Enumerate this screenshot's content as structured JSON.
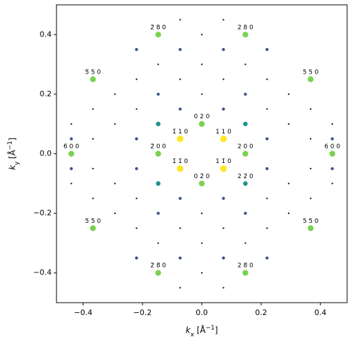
{
  "chart_data": {
    "type": "scatter",
    "xlabel": [
      "k",
      "x",
      " [Å",
      "−1",
      "]"
    ],
    "ylabel": [
      "k",
      "y",
      " [Å",
      "−1",
      "]"
    ],
    "xlim": [
      -0.49,
      0.49
    ],
    "ylim": [
      -0.5,
      0.5
    ],
    "xticks": [
      {
        "value": -0.4,
        "label": "−0.4"
      },
      {
        "value": -0.2,
        "label": "−0.2"
      },
      {
        "value": 0,
        "label": "0.0"
      },
      {
        "value": 0.2,
        "label": "0.2"
      },
      {
        "value": 0.4,
        "label": "0.4"
      }
    ],
    "yticks": [
      {
        "value": -0.4,
        "label": "−0.4"
      },
      {
        "value": -0.2,
        "label": "−0.2"
      },
      {
        "value": 0,
        "label": "0.0"
      },
      {
        "value": 0.2,
        "label": "0.2"
      },
      {
        "value": 0.4,
        "label": "0.4"
      }
    ],
    "series": [
      {
        "color": "#440154",
        "size": 1.2,
        "x": [
          0.293,
          -0.293,
          0.293,
          -0.293,
          0.293,
          -0.293,
          0.293,
          -0.293,
          0.22,
          -0.22,
          0.22,
          -0.22,
          0.367,
          -0.367,
          0.367,
          -0.367,
          0.367,
          -0.367,
          0.367,
          -0.367,
          0.44,
          -0.44,
          0.44,
          -0.44,
          0,
          0,
          0.073,
          -0.073,
          0.073,
          -0.073,
          0,
          0,
          0.22,
          -0.22,
          0.22,
          -0.22,
          0.147,
          -0.147,
          0.147,
          -0.147,
          0,
          0,
          0.073,
          -0.073,
          0.073,
          -0.073
        ],
        "y": [
          0.1,
          0.1,
          -0.1,
          -0.1,
          0.2,
          0.2,
          -0.2,
          -0.2,
          0.25,
          0.25,
          -0.25,
          -0.25,
          0.05,
          0.05,
          -0.05,
          -0.05,
          0.15,
          0.15,
          -0.15,
          -0.15,
          0.1,
          0.1,
          -0.1,
          -0.1,
          0.4,
          -0.4,
          0.45,
          0.45,
          -0.45,
          -0.45,
          0.2,
          -0.2,
          0.15,
          0.15,
          -0.15,
          -0.15,
          0.3,
          0.3,
          -0.3,
          -0.3,
          0.3,
          -0.3,
          0.25,
          0.25,
          -0.25,
          -0.25
        ],
        "labels": []
      },
      {
        "color": "#3b528b",
        "size": 2.2,
        "x": [
          0.073,
          -0.073,
          0.073,
          -0.073,
          0.073,
          -0.073,
          0.073,
          -0.073,
          0.22,
          -0.22,
          0.22,
          -0.22,
          0.44,
          -0.44,
          0.44,
          -0.44,
          0.22,
          -0.22,
          0.22,
          -0.22,
          0.147,
          -0.147,
          0.147,
          -0.147
        ],
        "y": [
          0.35,
          0.35,
          -0.35,
          -0.35,
          0.15,
          0.15,
          -0.15,
          -0.15,
          0.35,
          0.35,
          -0.35,
          -0.35,
          0.05,
          0.05,
          -0.05,
          -0.05,
          0.05,
          0.05,
          -0.05,
          -0.05,
          0.2,
          0.2,
          -0.2,
          -0.2
        ],
        "labels": []
      },
      {
        "color": "#21918c",
        "size": 3.3,
        "x": [
          0.147,
          -0.147,
          -0.147,
          0.147
        ],
        "y": [
          0.1,
          0.1,
          -0.1,
          -0.1
        ],
        "labels": [
          null,
          null,
          null,
          "2 2̄ 0"
        ]
      },
      {
        "color": "#7ad151",
        "size": 4.2,
        "x": [
          0,
          0,
          0.147,
          -0.147,
          0.44,
          -0.44,
          0.147,
          -0.147,
          0.147,
          -0.147,
          0.367,
          -0.367,
          0.367,
          -0.367
        ],
        "y": [
          0.1,
          -0.1,
          0,
          0,
          0,
          0,
          0.4,
          0.4,
          -0.4,
          -0.4,
          0.25,
          0.25,
          -0.25,
          -0.25
        ],
        "labels": [
          "0 2 0",
          "0 2̄ 0",
          "2 0 0",
          "2̄ 0 0",
          "6 0 0",
          "6̄ 0 0",
          "2 8 0",
          "2̄ 8 0",
          "2 8̄ 0",
          "2̄ 8̄ 0",
          "5 5 0",
          "5̄ 5 0",
          "5 5̄ 0",
          "5̄ 5̄ 0"
        ]
      },
      {
        "color": "#fde725",
        "size": 4.8,
        "x": [
          0.073,
          -0.073,
          0.073,
          -0.073
        ],
        "y": [
          0.05,
          0.05,
          -0.05,
          -0.05
        ],
        "labels": [
          "1 1 0",
          "1̄ 1 0",
          "1 1̄ 0",
          "1̄ 1̄ 0"
        ]
      }
    ]
  }
}
